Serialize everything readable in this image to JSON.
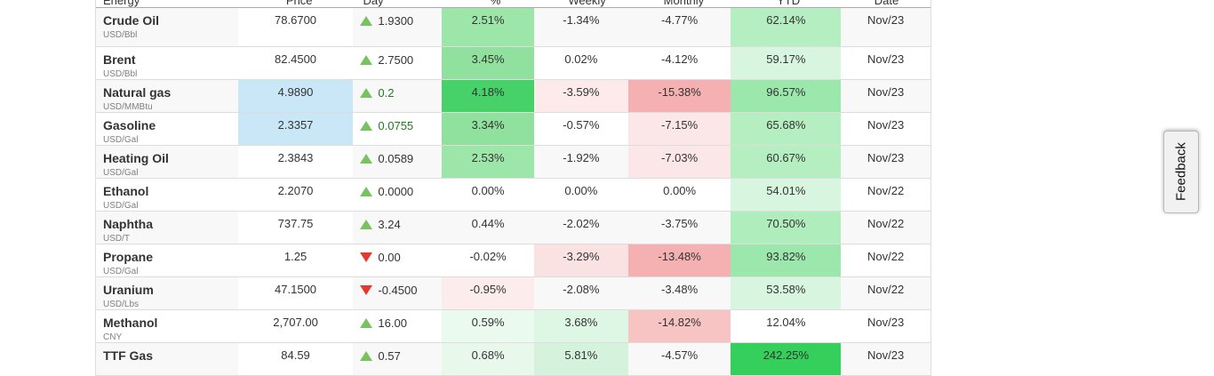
{
  "feedback_button": {
    "label": "Feedback"
  },
  "colors": {
    "triangle_up": "#77c35f",
    "triangle_down": "#e6392b",
    "price_flash_blue": "#c9e7f7",
    "row_stripe": "#f8f8f8",
    "row_border": "#dddddd",
    "header_border": "#ababab",
    "day_live_green_text": "#1e7b1e"
  },
  "table": {
    "columns": [
      {
        "label": "Energy"
      },
      {
        "label": "Price"
      },
      {
        "label": "Day"
      },
      {
        "label": "%"
      },
      {
        "label": "Weekly"
      },
      {
        "label": "Monthly"
      },
      {
        "label": "YTD"
      },
      {
        "label": "Date"
      }
    ],
    "rows": [
      {
        "name": "Crude Oil",
        "unit": "USD/Bbl",
        "price": "78.6700",
        "price_bg": "",
        "day_dir": "up",
        "day": "1.9300",
        "day_color": "#333333",
        "pct": "2.51%",
        "pct_bg": "#9de6aa",
        "weekly": "-1.34%",
        "weekly_bg": "",
        "monthly": "-4.77%",
        "monthly_bg": "",
        "ytd": "62.14%",
        "ytd_bg": "#b4eec1",
        "date": "Nov/23"
      },
      {
        "name": "Brent",
        "unit": "USD/Bbl",
        "price": "82.4500",
        "price_bg": "",
        "day_dir": "up",
        "day": "2.7500",
        "day_color": "#333333",
        "pct": "3.45%",
        "pct_bg": "#8fe19d",
        "weekly": "0.02%",
        "weekly_bg": "",
        "monthly": "-4.12%",
        "monthly_bg": "",
        "ytd": "59.17%",
        "ytd_bg": "#d8f5e0",
        "date": "Nov/23"
      },
      {
        "name": "Natural gas",
        "unit": "USD/MMBtu",
        "price": "4.9890",
        "price_bg": "#c9e7f7",
        "day_dir": "up",
        "day": "0.2",
        "day_color": "#1e7b1e",
        "pct": "4.18%",
        "pct_bg": "#46d269",
        "weekly": "-3.59%",
        "weekly_bg": "#fdebeb",
        "monthly": "-15.38%",
        "monthly_bg": "#f5b1b1",
        "ytd": "96.57%",
        "ytd_bg": "#9ce7ac",
        "date": "Nov/23"
      },
      {
        "name": "Gasoline",
        "unit": "USD/Gal",
        "price": "2.3357",
        "price_bg": "#c9e7f7",
        "day_dir": "up",
        "day": "0.0755",
        "day_color": "#1e7b1e",
        "pct": "3.34%",
        "pct_bg": "#8fe19d",
        "weekly": "-0.57%",
        "weekly_bg": "",
        "monthly": "-7.15%",
        "monthly_bg": "#fce7e8",
        "ytd": "65.68%",
        "ytd_bg": "#b4eec1",
        "date": "Nov/23"
      },
      {
        "name": "Heating Oil",
        "unit": "USD/Gal",
        "price": "2.3843",
        "price_bg": "",
        "day_dir": "up",
        "day": "0.0589",
        "day_color": "#333333",
        "pct": "2.53%",
        "pct_bg": "#9de6aa",
        "weekly": "-1.92%",
        "weekly_bg": "",
        "monthly": "-7.03%",
        "monthly_bg": "#fce7e8",
        "ytd": "60.67%",
        "ytd_bg": "#b4eec1",
        "date": "Nov/23"
      },
      {
        "name": "Ethanol",
        "unit": "USD/Gal",
        "price": "2.2070",
        "price_bg": "",
        "day_dir": "up",
        "day": "0.0000",
        "day_color": "#333333",
        "pct": "0.00%",
        "pct_bg": "",
        "weekly": "0.00%",
        "weekly_bg": "",
        "monthly": "0.00%",
        "monthly_bg": "",
        "ytd": "54.01%",
        "ytd_bg": "#d8f5e0",
        "date": "Nov/22"
      },
      {
        "name": "Naphtha",
        "unit": "USD/T",
        "price": "737.75",
        "price_bg": "",
        "day_dir": "up",
        "day": "3.24",
        "day_color": "#333333",
        "pct": "0.44%",
        "pct_bg": "",
        "weekly": "-2.02%",
        "weekly_bg": "",
        "monthly": "-3.75%",
        "monthly_bg": "",
        "ytd": "70.50%",
        "ytd_bg": "#b0edbd",
        "date": "Nov/22"
      },
      {
        "name": "Propane",
        "unit": "USD/Gal",
        "price": "1.25",
        "price_bg": "",
        "day_dir": "down",
        "day": "0.00",
        "day_color": "#333333",
        "pct": "-0.02%",
        "pct_bg": "",
        "weekly": "-3.29%",
        "weekly_bg": "#fbe2e2",
        "monthly": "-13.48%",
        "monthly_bg": "#f5b1b1",
        "ytd": "93.82%",
        "ytd_bg": "#9ce7ac",
        "date": "Nov/22"
      },
      {
        "name": "Uranium",
        "unit": "USD/Lbs",
        "price": "47.1500",
        "price_bg": "",
        "day_dir": "down",
        "day": "-0.4500",
        "day_color": "#333333",
        "pct": "-0.95%",
        "pct_bg": "#fdecec",
        "weekly": "-2.08%",
        "weekly_bg": "",
        "monthly": "-3.48%",
        "monthly_bg": "",
        "ytd": "53.58%",
        "ytd_bg": "#d8f5e0",
        "date": "Nov/22"
      },
      {
        "name": "Methanol",
        "unit": "CNY",
        "price": "2,707.00",
        "price_bg": "",
        "day_dir": "up",
        "day": "16.00",
        "day_color": "#333333",
        "pct": "0.59%",
        "pct_bg": "#ebfaef",
        "weekly": "3.68%",
        "weekly_bg": "#def6e4",
        "monthly": "-14.82%",
        "monthly_bg": "#f7c3c3",
        "ytd": "12.04%",
        "ytd_bg": "",
        "date": "Nov/23"
      },
      {
        "name": "TTF Gas",
        "unit": "",
        "price": "84.59",
        "price_bg": "",
        "day_dir": "up",
        "day": "0.57",
        "day_color": "#333333",
        "pct": "0.68%",
        "pct_bg": "#e8f9ec",
        "weekly": "5.81%",
        "weekly_bg": "#d5f3dc",
        "monthly": "-4.57%",
        "monthly_bg": "",
        "ytd": "242.25%",
        "ytd_bg": "#35cf5b",
        "date": "Nov/23"
      }
    ]
  }
}
